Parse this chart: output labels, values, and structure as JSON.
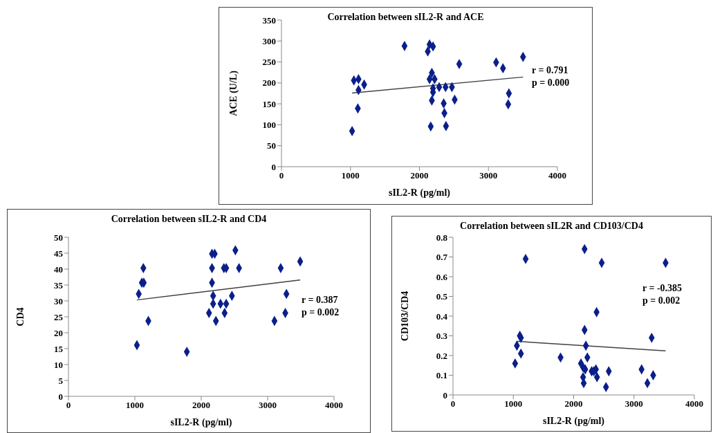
{
  "chart_data": [
    {
      "type": "scatter",
      "title": "Correlation between sIL2-R and ACE",
      "xlabel": "sIL2-R (pg/ml)",
      "ylabel": "ACE (U/L)",
      "xlim": [
        0,
        4000
      ],
      "xticks": [
        0,
        1000,
        2000,
        3000,
        4000
      ],
      "ylim": [
        0,
        350
      ],
      "yticks": [
        0,
        50,
        100,
        150,
        200,
        250,
        300,
        350
      ],
      "annotations": [
        "r = 0.791",
        "p = 0.000"
      ],
      "series": [
        {
          "marker": "diamond",
          "color": "#0b1f8a",
          "x": [
            1024,
            1050,
            1117,
            1199,
            1117,
            1107,
            1784,
            2147,
            2197,
            2121,
            2180,
            2147,
            2220,
            2197,
            2197,
            2286,
            2379,
            2471,
            2180,
            2352,
            2362,
            2511,
            2577,
            2164,
            2385,
            3112,
            3211,
            3297,
            3287,
            3502
          ],
          "values": [
            85,
            206,
            209,
            196,
            183,
            139,
            288,
            292,
            287,
            275,
            224,
            209,
            209,
            187,
            178,
            190,
            190,
            190,
            158,
            151,
            128,
            160,
            245,
            96,
            97,
            249,
            235,
            175,
            149,
            262
          ]
        },
        {
          "type": "line",
          "color": "#404040",
          "x": [
            1024,
            3502
          ],
          "values": [
            176,
            214
          ]
        }
      ]
    },
    {
      "type": "scatter",
      "title": "Correlation between sIL2-R and CD4",
      "xlabel": "sIL2-R (pg/ml)",
      "ylabel": "CD4",
      "xlim": [
        0,
        4000
      ],
      "xticks": [
        0,
        1000,
        2000,
        3000,
        4000
      ],
      "ylim": [
        0,
        50
      ],
      "yticks": [
        0,
        5,
        10,
        15,
        20,
        25,
        30,
        35,
        40,
        45,
        50
      ],
      "annotations": [
        "r = 0.387",
        "p = 0.002"
      ],
      "series": [
        {
          "marker": "diamond",
          "color": "#0b1f8a",
          "x": [
            1031,
            1059,
            1128,
            1105,
            1134,
            1203,
            1783,
            2162,
            2203,
            2162,
            2162,
            2179,
            2179,
            2117,
            2221,
            2290,
            2376,
            2352,
            2341,
            2376,
            2462,
            2514,
            2569,
            3103,
            3197,
            3283,
            3266,
            3490
          ],
          "values": [
            16.1,
            32.2,
            40.3,
            35.7,
            35.7,
            23.7,
            14.0,
            44.8,
            44.8,
            40.3,
            35.7,
            31.6,
            29.1,
            26.2,
            23.7,
            29.1,
            29.1,
            26.2,
            40.3,
            40.3,
            31.6,
            45.9,
            40.3,
            23.7,
            40.3,
            32.2,
            26.2,
            42.4
          ]
        },
        {
          "type": "line",
          "color": "#404040",
          "x": [
            1031,
            3490
          ],
          "values": [
            30.3,
            36.6
          ]
        }
      ]
    },
    {
      "type": "scatter",
      "title": "Correlation between sIL2R and CD103/CD4",
      "xlabel": "sIL2-R (pg/ml)",
      "ylabel": "CD103/CD4",
      "xlim": [
        0,
        4000
      ],
      "xticks": [
        0,
        1000,
        2000,
        3000,
        4000
      ],
      "ylim": [
        0,
        0.8
      ],
      "yticks": [
        0,
        0.1,
        0.2,
        0.3,
        0.4,
        0.5,
        0.6,
        0.7,
        0.8
      ],
      "annotations": [
        "r = -0.385",
        "p = 0.002"
      ],
      "series": [
        {
          "marker": "diamond",
          "color": "#0b1f8a",
          "x": [
            1030,
            1059,
            1126,
            1108,
            1126,
            1204,
            1783,
            2181,
            2181,
            2203,
            2227,
            2121,
            2156,
            2192,
            2298,
            2369,
            2334,
            2387,
            2156,
            2167,
            2380,
            2465,
            2536,
            2582,
            3126,
            3222,
            3318,
            3293,
            3524
          ],
          "values": [
            0.16,
            0.25,
            0.21,
            0.3,
            0.29,
            0.69,
            0.19,
            0.74,
            0.33,
            0.25,
            0.19,
            0.16,
            0.14,
            0.13,
            0.12,
            0.13,
            0.12,
            0.09,
            0.09,
            0.06,
            0.42,
            0.67,
            0.04,
            0.12,
            0.13,
            0.06,
            0.1,
            0.29,
            0.67
          ]
        },
        {
          "type": "line",
          "color": "#404040",
          "x": [
            1059,
            3524
          ],
          "values": [
            0.272,
            0.224
          ]
        }
      ]
    }
  ]
}
